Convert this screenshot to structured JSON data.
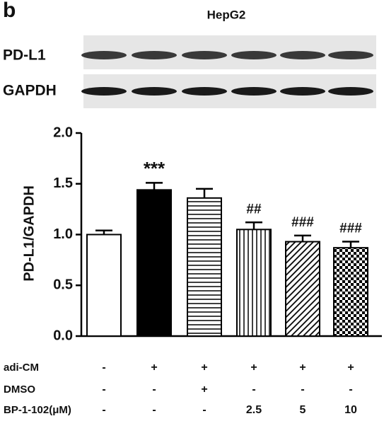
{
  "panel_label": "b",
  "blot_labels": [
    "PD-L1",
    "GAPDH"
  ],
  "chart_data": {
    "type": "bar",
    "title": "HepG2",
    "ylabel": "PD-L1/GAPDH",
    "values": [
      1.0,
      1.44,
      1.36,
      1.05,
      0.93,
      0.87
    ],
    "errors": [
      0.04,
      0.07,
      0.09,
      0.07,
      0.06,
      0.06
    ],
    "annotations": [
      null,
      "***",
      null,
      "##",
      "###",
      "###"
    ],
    "patterns": [
      "white",
      "black",
      "hlines",
      "vlines",
      "diagonal",
      "checker"
    ],
    "ylim": [
      0,
      2
    ],
    "yticks": [
      {
        "value": 0,
        "label": "0.0"
      },
      {
        "value": 0.5,
        "label": "0.5"
      },
      {
        "value": 1,
        "label": "1.0"
      },
      {
        "value": 1.5,
        "label": "1.5"
      },
      {
        "value": 2,
        "label": "2.0"
      }
    ]
  },
  "conditions": [
    {
      "name": "adi-CM",
      "values": [
        "-",
        "+",
        "+",
        "+",
        "+",
        "+"
      ]
    },
    {
      "name": "DMSO",
      "values": [
        "-",
        "-",
        "+",
        "-",
        "-",
        "-"
      ]
    },
    {
      "name": "BP-1-102(μM)",
      "values": [
        "-",
        "-",
        "-",
        "2.5",
        "5",
        "10"
      ]
    }
  ]
}
